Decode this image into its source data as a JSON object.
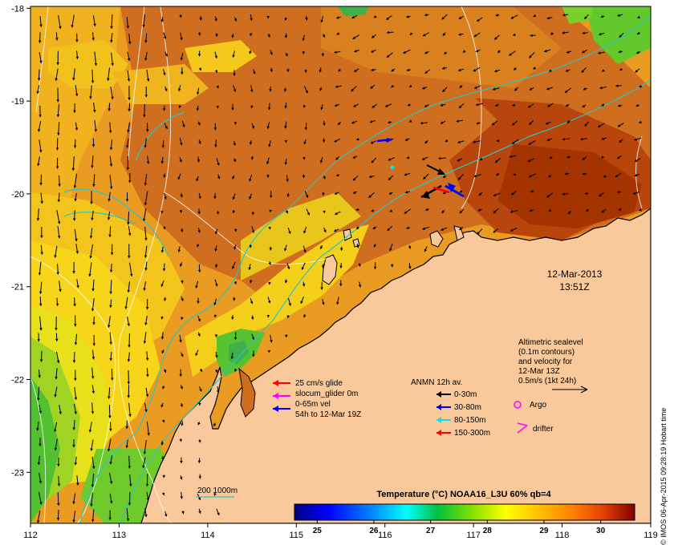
{
  "axes": {
    "lon_ticks": [
      "112",
      "113",
      "114",
      "115",
      "116",
      "117",
      "118",
      "119"
    ],
    "lat_ticks": [
      "-18",
      "-19",
      "-20",
      "-21",
      "-22",
      "-23"
    ],
    "lon_range": [
      112,
      119
    ],
    "lat_range": [
      -17.98,
      -23.55
    ]
  },
  "timestamp": {
    "date": "12-Mar-2013",
    "time": "13:51Z"
  },
  "legend_glider": {
    "line1": "25 cm/s glide",
    "line2": "slocum_glider 0m",
    "line3": "0-65m vel",
    "line4": "54h to 12-Mar 19Z",
    "colors": [
      "#ff0000",
      "#ff00ff",
      "#0000ff"
    ]
  },
  "legend_anmn": {
    "title": "ANMN 12h av.",
    "items": [
      {
        "label": "0-30m",
        "color": "#000000"
      },
      {
        "label": "30-80m",
        "color": "#0000ff"
      },
      {
        "label": "80-150m",
        "color": "#00e5e5"
      },
      {
        "label": "150-300m",
        "color": "#ff0000"
      }
    ]
  },
  "legend_altimetry": {
    "line1": "Altimetric sealevel",
    "line2": "(0.1m contours)",
    "line3": "and velocity for",
    "line4": "12-Mar 13Z",
    "line5": "0.5m/s (1kt 24h)"
  },
  "legend_argo": {
    "label": "Argo",
    "color": "#ff00ff"
  },
  "legend_drifter": {
    "label": "drifter",
    "color": "#ff00ff"
  },
  "bathymetry": {
    "label": "200  1000m",
    "color": "#2ec4c4"
  },
  "colorbar": {
    "title": "Temperature (°C) NOAA16_L3U 60% qb=4",
    "ticks": [
      "25",
      "26",
      "27",
      "28",
      "29",
      "30"
    ],
    "range": [
      24.6,
      30.6
    ],
    "stops": [
      "#00007f",
      "#0000ff",
      "#007fff",
      "#00ffff",
      "#00c040",
      "#80e000",
      "#ffff00",
      "#ffbf00",
      "#ff7f00",
      "#e04000",
      "#800000"
    ]
  },
  "credit": "© IMOS 06-Apr-2015 09:28:19 Hobart time",
  "colors": {
    "land": "#f9c99b",
    "sea_warm": "#cc6a1c",
    "sea_mid": "#e8951e",
    "sea_cool": "#f5d21a",
    "sea_green": "#62c82c",
    "bathy": "#2ec4c4"
  }
}
